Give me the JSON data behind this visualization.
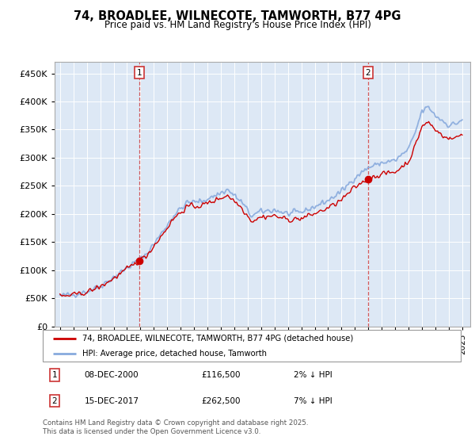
{
  "title": "74, BROADLEE, WILNECOTE, TAMWORTH, B77 4PG",
  "subtitle": "Price paid vs. HM Land Registry's House Price Index (HPI)",
  "legend_line1": "74, BROADLEE, WILNECOTE, TAMWORTH, B77 4PG (detached house)",
  "legend_line2": "HPI: Average price, detached house, Tamworth",
  "annotation1_label": "1",
  "annotation1_date": "08-DEC-2000",
  "annotation1_price": "£116,500",
  "annotation1_hpi": "2% ↓ HPI",
  "annotation1_year": 2000.93,
  "annotation1_value": 116500,
  "annotation2_label": "2",
  "annotation2_date": "15-DEC-2017",
  "annotation2_price": "£262,500",
  "annotation2_hpi": "7% ↓ HPI",
  "annotation2_year": 2017.96,
  "annotation2_value": 262500,
  "footer": "Contains HM Land Registry data © Crown copyright and database right 2025.\nThis data is licensed under the Open Government Licence v3.0.",
  "ylim": [
    0,
    470000
  ],
  "yticks": [
    0,
    50000,
    100000,
    150000,
    200000,
    250000,
    300000,
    350000,
    400000,
    450000
  ],
  "line_color_property": "#cc0000",
  "line_color_hpi": "#88aadd",
  "vline_color": "#cc3333",
  "chart_bg": "#dde8f5",
  "fig_bg": "#ffffff",
  "grid_color": "#ffffff",
  "xticks": [
    1995,
    1996,
    1997,
    1998,
    1999,
    2000,
    2001,
    2002,
    2003,
    2004,
    2005,
    2006,
    2007,
    2008,
    2009,
    2010,
    2011,
    2012,
    2013,
    2014,
    2015,
    2016,
    2017,
    2018,
    2019,
    2020,
    2021,
    2022,
    2023,
    2024,
    2025
  ]
}
